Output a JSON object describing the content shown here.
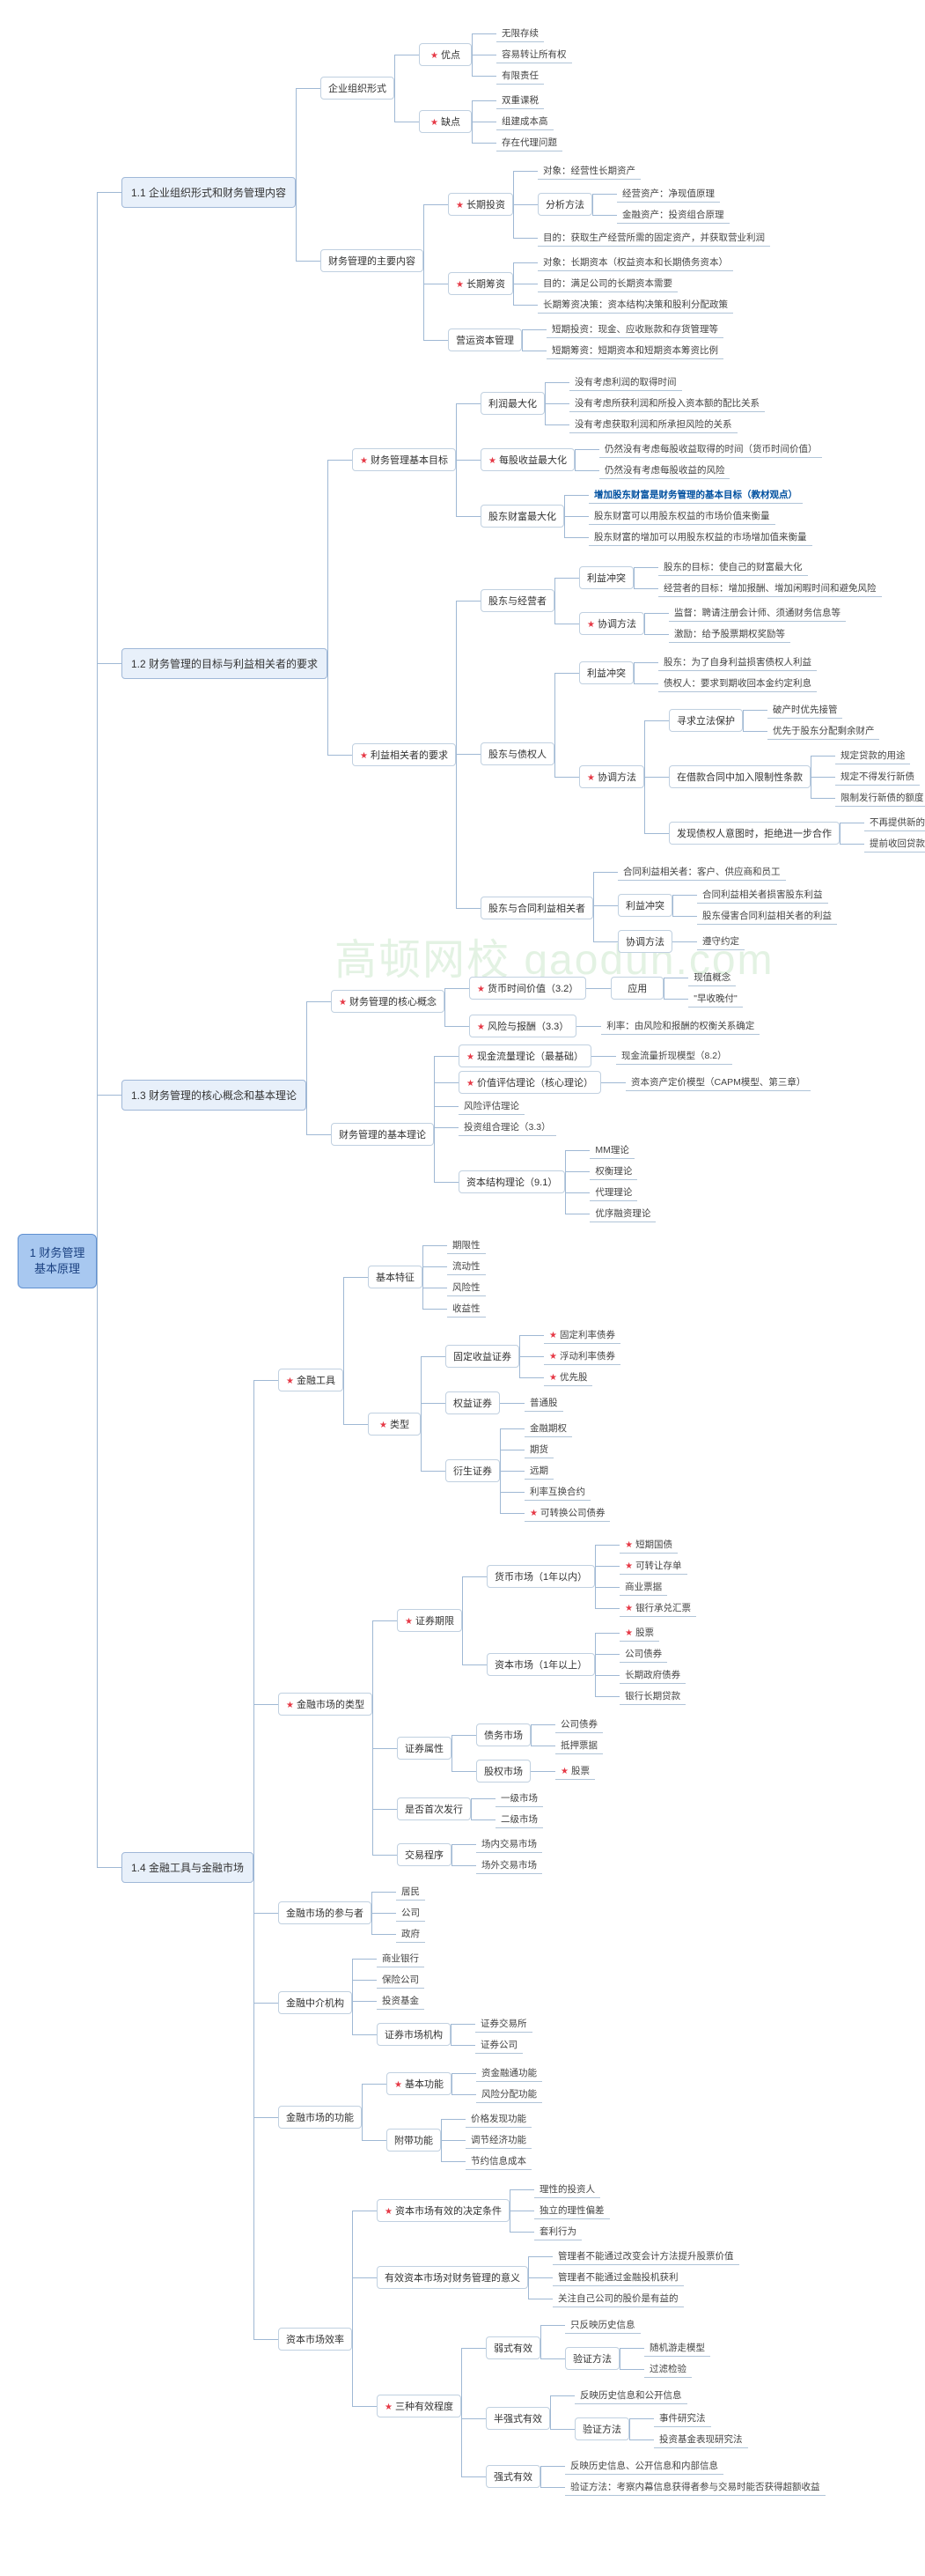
{
  "root": "1 财务管理基本原理",
  "watermark": "高顿网校 gaodun.com",
  "colors": {
    "root_bg": "#a8c8f0",
    "root_border": "#6090d0",
    "level2_bg": "#e8f0fa",
    "connector": "#9fb8d4",
    "star": "#e63946",
    "bold_text": "#0050a0"
  },
  "tree": [
    {
      "label": "1.1 企业组织形式和财务管理内容",
      "children": [
        {
          "label": "企业组织形式",
          "children": [
            {
              "label": "优点",
              "star": true,
              "children": [
                {
                  "label": "无限存续"
                },
                {
                  "label": "容易转让所有权"
                },
                {
                  "label": "有限责任"
                }
              ]
            },
            {
              "label": "缺点",
              "star": true,
              "children": [
                {
                  "label": "双重课税"
                },
                {
                  "label": "组建成本高"
                },
                {
                  "label": "存在代理问题"
                }
              ]
            }
          ]
        },
        {
          "label": "财务管理的主要内容",
          "children": [
            {
              "label": "长期投资",
              "star": true,
              "children": [
                {
                  "label": "对象：经营性长期资产"
                },
                {
                  "label": "分析方法",
                  "children": [
                    {
                      "label": "经营资产：净现值原理"
                    },
                    {
                      "label": "金融资产：投资组合原理"
                    }
                  ]
                },
                {
                  "label": "目的：获取生产经营所需的固定资产，并获取营业利润"
                }
              ]
            },
            {
              "label": "长期筹资",
              "star": true,
              "children": [
                {
                  "label": "对象：长期资本（权益资本和长期债务资本）"
                },
                {
                  "label": "目的：满足公司的长期资本需要"
                },
                {
                  "label": "长期筹资决策：资本结构决策和股利分配政策"
                }
              ]
            },
            {
              "label": "营运资本管理",
              "children": [
                {
                  "label": "短期投资：现金、应收账款和存货管理等"
                },
                {
                  "label": "短期筹资：短期资本和短期资本筹资比例"
                }
              ]
            }
          ]
        }
      ]
    },
    {
      "label": "1.2 财务管理的目标与利益相关者的要求",
      "children": [
        {
          "label": "财务管理基本目标",
          "star": true,
          "children": [
            {
              "label": "利润最大化",
              "children": [
                {
                  "label": "没有考虑利润的取得时间"
                },
                {
                  "label": "没有考虑所获利润和所投入资本额的配比关系"
                },
                {
                  "label": "没有考虑获取利润和所承担风险的关系"
                }
              ]
            },
            {
              "label": "每股收益最大化",
              "star": true,
              "children": [
                {
                  "label": "仍然没有考虑每股收益取得的时间（货币时间价值）"
                },
                {
                  "label": "仍然没有考虑每股收益的风险"
                }
              ]
            },
            {
              "label": "股东财富最大化",
              "children": [
                {
                  "label": "增加股东财富是财务管理的基本目标（教材观点）",
                  "bold": true
                },
                {
                  "label": "股东财富可以用股东权益的市场价值来衡量"
                },
                {
                  "label": "股东财富的增加可以用股东权益的市场增加值来衡量"
                }
              ]
            }
          ]
        },
        {
          "label": "利益相关者的要求",
          "star": true,
          "children": [
            {
              "label": "股东与经营者",
              "children": [
                {
                  "label": "利益冲突",
                  "children": [
                    {
                      "label": "股东的目标：使自己的财富最大化"
                    },
                    {
                      "label": "经营者的目标：增加报酬、增加闲暇时间和避免风险"
                    }
                  ]
                },
                {
                  "label": "协调方法",
                  "star": true,
                  "children": [
                    {
                      "label": "监督：聘请注册会计师、须通财务信息等"
                    },
                    {
                      "label": "激励：给予股票期权奖励等"
                    }
                  ]
                }
              ]
            },
            {
              "label": "股东与债权人",
              "children": [
                {
                  "label": "利益冲突",
                  "children": [
                    {
                      "label": "股东：为了自身利益损害债权人利益"
                    },
                    {
                      "label": "债权人：要求到期收回本金约定利息"
                    }
                  ]
                },
                {
                  "label": "协调方法",
                  "star": true,
                  "children": [
                    {
                      "label": "寻求立法保护",
                      "children": [
                        {
                          "label": "破产时优先接管"
                        },
                        {
                          "label": "优先于股东分配剩余财产"
                        }
                      ]
                    },
                    {
                      "label": "在借款合同中加入限制性条款",
                      "children": [
                        {
                          "label": "规定贷款的用途"
                        },
                        {
                          "label": "规定不得发行新债"
                        },
                        {
                          "label": "限制发行新债的额度"
                        }
                      ]
                    },
                    {
                      "label": "发现债权人意图时，拒绝进一步合作",
                      "children": [
                        {
                          "label": "不再提供新的贷款"
                        },
                        {
                          "label": "提前收回贷款"
                        }
                      ]
                    }
                  ]
                }
              ]
            },
            {
              "label": "股东与合同利益相关者",
              "children": [
                {
                  "label": "合同利益相关者：客户、供应商和员工"
                },
                {
                  "label": "利益冲突",
                  "children": [
                    {
                      "label": "合同利益相关者损害股东利益"
                    },
                    {
                      "label": "股东侵害合同利益相关者的利益"
                    }
                  ]
                },
                {
                  "label": "协调方法",
                  "children": [
                    {
                      "label": "遵守约定"
                    }
                  ]
                }
              ]
            }
          ]
        }
      ]
    },
    {
      "label": "1.3 财务管理的核心概念和基本理论",
      "children": [
        {
          "label": "财务管理的核心概念",
          "star": true,
          "children": [
            {
              "label": "货币时间价值（3.2）",
              "star": true,
              "children": [
                {
                  "label": "应用",
                  "children": [
                    {
                      "label": "现值概念"
                    },
                    {
                      "label": "\"早收晚付\""
                    }
                  ]
                }
              ]
            },
            {
              "label": "风险与报酬（3.3）",
              "star": true,
              "children": [
                {
                  "label": "利率：由风险和报酬的权衡关系确定"
                }
              ]
            }
          ]
        },
        {
          "label": "财务管理的基本理论",
          "children": [
            {
              "label": "现金流量理论（最基础）",
              "star": true,
              "children": [
                {
                  "label": "现金流量折现模型（8.2）"
                }
              ]
            },
            {
              "label": "价值评估理论（核心理论）",
              "star": true,
              "children": [
                {
                  "label": "资本资产定价模型（CAPM模型、第三章）"
                }
              ]
            },
            {
              "label": "风险评估理论"
            },
            {
              "label": "投资组合理论（3.3）"
            },
            {
              "label": "资本结构理论（9.1）",
              "children": [
                {
                  "label": "MM理论"
                },
                {
                  "label": "权衡理论"
                },
                {
                  "label": "代理理论"
                },
                {
                  "label": "优序融资理论"
                }
              ]
            }
          ]
        }
      ]
    },
    {
      "label": "1.4 金融工具与金融市场",
      "children": [
        {
          "label": "金融工具",
          "star": true,
          "children": [
            {
              "label": "基本特征",
              "children": [
                {
                  "label": "期限性"
                },
                {
                  "label": "流动性"
                },
                {
                  "label": "风险性"
                },
                {
                  "label": "收益性"
                }
              ]
            },
            {
              "label": "类型",
              "star": true,
              "children": [
                {
                  "label": "固定收益证券",
                  "children": [
                    {
                      "label": "固定利率债券",
                      "star": true
                    },
                    {
                      "label": "浮动利率债券",
                      "star": true
                    },
                    {
                      "label": "优先股",
                      "star": true
                    }
                  ]
                },
                {
                  "label": "权益证券",
                  "children": [
                    {
                      "label": "普通股"
                    }
                  ]
                },
                {
                  "label": "衍生证券",
                  "children": [
                    {
                      "label": "金融期权"
                    },
                    {
                      "label": "期货"
                    },
                    {
                      "label": "远期"
                    },
                    {
                      "label": "利率互换合约"
                    },
                    {
                      "label": "可转换公司债券",
                      "star": true
                    }
                  ]
                }
              ]
            }
          ]
        },
        {
          "label": "金融市场的类型",
          "star": true,
          "children": [
            {
              "label": "证券期限",
              "star": true,
              "children": [
                {
                  "label": "货币市场（1年以内）",
                  "children": [
                    {
                      "label": "短期国债",
                      "star": true
                    },
                    {
                      "label": "可转让存单",
                      "star": true
                    },
                    {
                      "label": "商业票据"
                    },
                    {
                      "label": "银行承兑汇票",
                      "star": true
                    }
                  ]
                },
                {
                  "label": "资本市场（1年以上）",
                  "children": [
                    {
                      "label": "股票",
                      "star": true
                    },
                    {
                      "label": "公司债券"
                    },
                    {
                      "label": "长期政府债券"
                    },
                    {
                      "label": "银行长期贷款"
                    }
                  ]
                }
              ]
            },
            {
              "label": "证券属性",
              "children": [
                {
                  "label": "债务市场",
                  "children": [
                    {
                      "label": "公司债券"
                    },
                    {
                      "label": "抵押票据"
                    }
                  ]
                },
                {
                  "label": "股权市场",
                  "children": [
                    {
                      "label": "股票",
                      "star": true
                    }
                  ]
                }
              ]
            },
            {
              "label": "是否首次发行",
              "children": [
                {
                  "label": "一级市场"
                },
                {
                  "label": "二级市场"
                }
              ]
            },
            {
              "label": "交易程序",
              "children": [
                {
                  "label": "场内交易市场"
                },
                {
                  "label": "场外交易市场"
                }
              ]
            }
          ]
        },
        {
          "label": "金融市场的参与者",
          "children": [
            {
              "label": "居民"
            },
            {
              "label": "公司"
            },
            {
              "label": "政府"
            }
          ]
        },
        {
          "label": "金融中介机构",
          "children": [
            {
              "label": "商业银行"
            },
            {
              "label": "保险公司"
            },
            {
              "label": "投资基金"
            },
            {
              "label": "证券市场机构",
              "children": [
                {
                  "label": "证券交易所"
                },
                {
                  "label": "证券公司"
                }
              ]
            }
          ]
        },
        {
          "label": "金融市场的功能",
          "children": [
            {
              "label": "基本功能",
              "star": true,
              "children": [
                {
                  "label": "资金融通功能"
                },
                {
                  "label": "风险分配功能"
                }
              ]
            },
            {
              "label": "附带功能",
              "children": [
                {
                  "label": "价格发现功能"
                },
                {
                  "label": "调节经济功能"
                },
                {
                  "label": "节约信息成本"
                }
              ]
            }
          ]
        },
        {
          "label": "资本市场效率",
          "children": [
            {
              "label": "资本市场有效的决定条件",
              "star": true,
              "children": [
                {
                  "label": "理性的投资人"
                },
                {
                  "label": "独立的理性偏差"
                },
                {
                  "label": "套利行为"
                }
              ]
            },
            {
              "label": "有效资本市场对财务管理的意义",
              "children": [
                {
                  "label": "管理者不能通过改变会计方法提升股票价值"
                },
                {
                  "label": "管理者不能通过金融投机获利"
                },
                {
                  "label": "关注自己公司的股价是有益的"
                }
              ]
            },
            {
              "label": "三种有效程度",
              "star": true,
              "children": [
                {
                  "label": "弱式有效",
                  "children": [
                    {
                      "label": "只反映历史信息"
                    },
                    {
                      "label": "验证方法",
                      "children": [
                        {
                          "label": "随机游走模型"
                        },
                        {
                          "label": "过滤检验"
                        }
                      ]
                    }
                  ]
                },
                {
                  "label": "半强式有效",
                  "children": [
                    {
                      "label": "反映历史信息和公开信息"
                    },
                    {
                      "label": "验证方法",
                      "children": [
                        {
                          "label": "事件研究法"
                        },
                        {
                          "label": "投资基金表现研究法"
                        }
                      ]
                    }
                  ]
                },
                {
                  "label": "强式有效",
                  "children": [
                    {
                      "label": "反映历史信息、公开信息和内部信息"
                    },
                    {
                      "label": "验证方法：考察内幕信息获得者参与交易时能否获得超额收益"
                    }
                  ]
                }
              ]
            }
          ]
        }
      ]
    }
  ]
}
